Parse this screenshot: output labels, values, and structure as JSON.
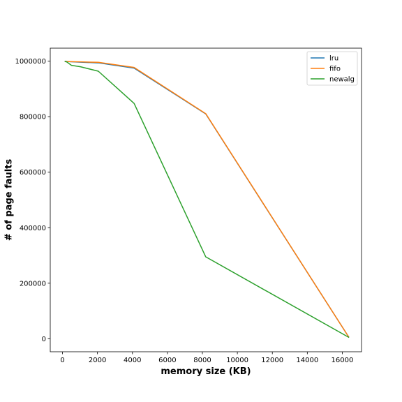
{
  "chart_data": {
    "type": "line",
    "title": "",
    "xlabel": "memory size (KB)",
    "ylabel": "# of page faults",
    "xlim": [
      -700,
      17100
    ],
    "ylim": [
      -47000,
      1047000
    ],
    "xticks": [
      0,
      2000,
      4000,
      6000,
      8000,
      10000,
      12000,
      14000,
      16000
    ],
    "yticks": [
      0,
      200000,
      400000,
      600000,
      800000,
      1000000
    ],
    "xtick_labels": [
      "0",
      "2000",
      "4000",
      "6000",
      "8000",
      "10000",
      "12000",
      "14000",
      "16000"
    ],
    "ytick_labels": [
      "0",
      "200000",
      "400000",
      "600000",
      "800000",
      "1000000"
    ],
    "grid": false,
    "legend_position": "top-right",
    "series": [
      {
        "name": "lru",
        "color": "#1f77b4",
        "x": [
          128,
          256,
          512,
          1024,
          2048,
          4096,
          8192,
          16384
        ],
        "y": [
          999500,
          998800,
          997800,
          996500,
          994000,
          975000,
          810000,
          4500
        ]
      },
      {
        "name": "fifo",
        "color": "#ff7f0e",
        "x": [
          128,
          256,
          512,
          1024,
          2048,
          4096,
          8192,
          16384
        ],
        "y": [
          999500,
          999000,
          998300,
          997500,
          996000,
          977500,
          811000,
          4500
        ]
      },
      {
        "name": "newalg",
        "color": "#2ca02c",
        "x": [
          128,
          256,
          512,
          1024,
          2048,
          4096,
          8192,
          16384
        ],
        "y": [
          999500,
          997000,
          985000,
          980000,
          964000,
          848000,
          295000,
          4500
        ]
      }
    ]
  }
}
